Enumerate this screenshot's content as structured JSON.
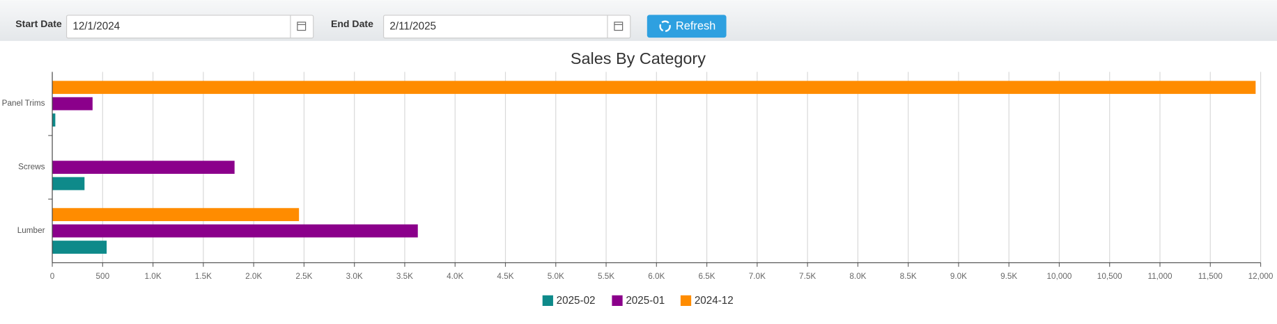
{
  "toolbar": {
    "start_label": "Start Date",
    "start_value": "12/1/2024",
    "end_label": "End Date",
    "end_value": "2/11/2025",
    "refresh": "Refresh"
  },
  "chart_data": {
    "type": "bar",
    "orientation": "horizontal",
    "title": "Sales By Category",
    "categories": [
      "Panel Trims",
      "Screws",
      "Lumber"
    ],
    "series": [
      {
        "name": "2025-02",
        "color": "#0e8a8a",
        "values": [
          30,
          320,
          540
        ]
      },
      {
        "name": "2025-01",
        "color": "#8b008b",
        "values": [
          400,
          1810,
          3630
        ]
      },
      {
        "name": "2024-12",
        "color": "#ff8c00",
        "values": [
          11950,
          null,
          2450
        ]
      }
    ],
    "xlim": [
      0,
      12000
    ],
    "xticks": [
      0,
      500,
      {
        "value": 1000,
        "label": "1.0K"
      },
      {
        "value": 1500,
        "label": "1.5K"
      },
      {
        "value": 2000,
        "label": "2.0K"
      },
      {
        "value": 2500,
        "label": "2.5K"
      },
      {
        "value": 3000,
        "label": "3.0K"
      },
      {
        "value": 3500,
        "label": "3.5K"
      },
      {
        "value": 4000,
        "label": "4.0K"
      },
      {
        "value": 4500,
        "label": "4.5K"
      },
      {
        "value": 5000,
        "label": "5.0K"
      },
      {
        "value": 5500,
        "label": "5.5K"
      },
      {
        "value": 6000,
        "label": "6.0K"
      },
      {
        "value": 6500,
        "label": "6.5K"
      },
      {
        "value": 7000,
        "label": "7.0K"
      },
      {
        "value": 7500,
        "label": "7.5K"
      },
      {
        "value": 8000,
        "label": "8.0K"
      },
      {
        "value": 8500,
        "label": "8.5K"
      },
      {
        "value": 9000,
        "label": "9.0K"
      },
      {
        "value": 9500,
        "label": "9.5K"
      },
      {
        "value": 10000,
        "label": "10,000"
      },
      {
        "value": 10500,
        "label": "10,500"
      },
      {
        "value": 11000,
        "label": "11,000"
      },
      {
        "value": 11500,
        "label": "11,500"
      },
      {
        "value": 12000,
        "label": "12,000"
      }
    ],
    "grid": true,
    "legend": "bottom"
  }
}
